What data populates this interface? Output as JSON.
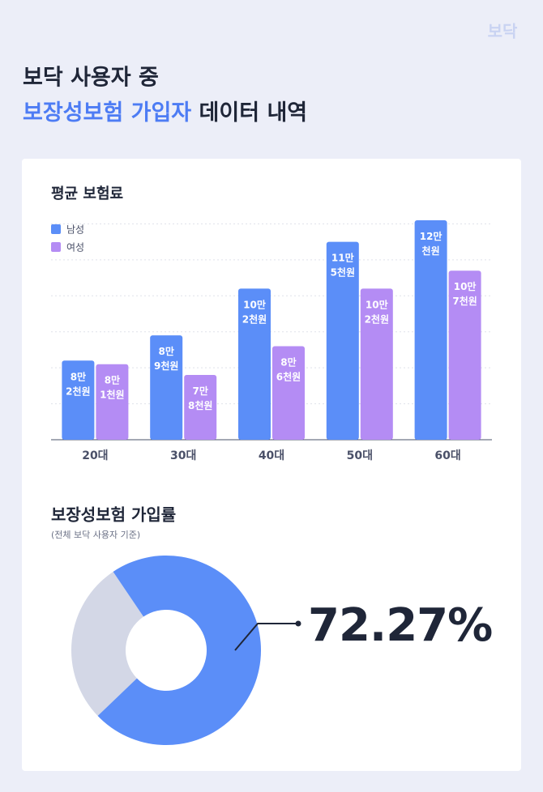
{
  "header": {
    "logo": "보닥",
    "title_line1": "보닥 사용자 중",
    "title_highlight": "보장성보험 가입자",
    "title_rest": " 데이터 내역"
  },
  "chart_data": [
    {
      "type": "bar",
      "title": "평균 보험료",
      "categories": [
        "20대",
        "30대",
        "40대",
        "50대",
        "60대"
      ],
      "series": [
        {
          "name": "남성",
          "color": "#5b8ef8",
          "values": [
            82000,
            89000,
            102000,
            115000,
            121000
          ],
          "value_labels": [
            "8만 2천원",
            "8만 9천원",
            "10만 2천원",
            "11만 5천원",
            "12만 천원"
          ]
        },
        {
          "name": "여성",
          "color": "#b48cf4",
          "values": [
            81000,
            78000,
            86000,
            102000,
            107000
          ],
          "value_labels": [
            "8만 1천원",
            "7만 8천원",
            "8만 6천원",
            "10만 2천원",
            "10만 7천원"
          ]
        }
      ],
      "ylim": [
        60000,
        121000
      ],
      "yticks": [
        60000,
        70000,
        80000,
        90000,
        100000,
        110000,
        120000
      ],
      "grid": true,
      "legend": "top-left"
    },
    {
      "type": "donut",
      "title": "보장성보험 가입률",
      "subtitle": "(전체 보닥 사용자 기준)",
      "values": [
        72.27
      ],
      "value_labels": [
        "72.27%"
      ],
      "color": "#5b8ef8",
      "rest_color": "#d3d7e6"
    }
  ]
}
